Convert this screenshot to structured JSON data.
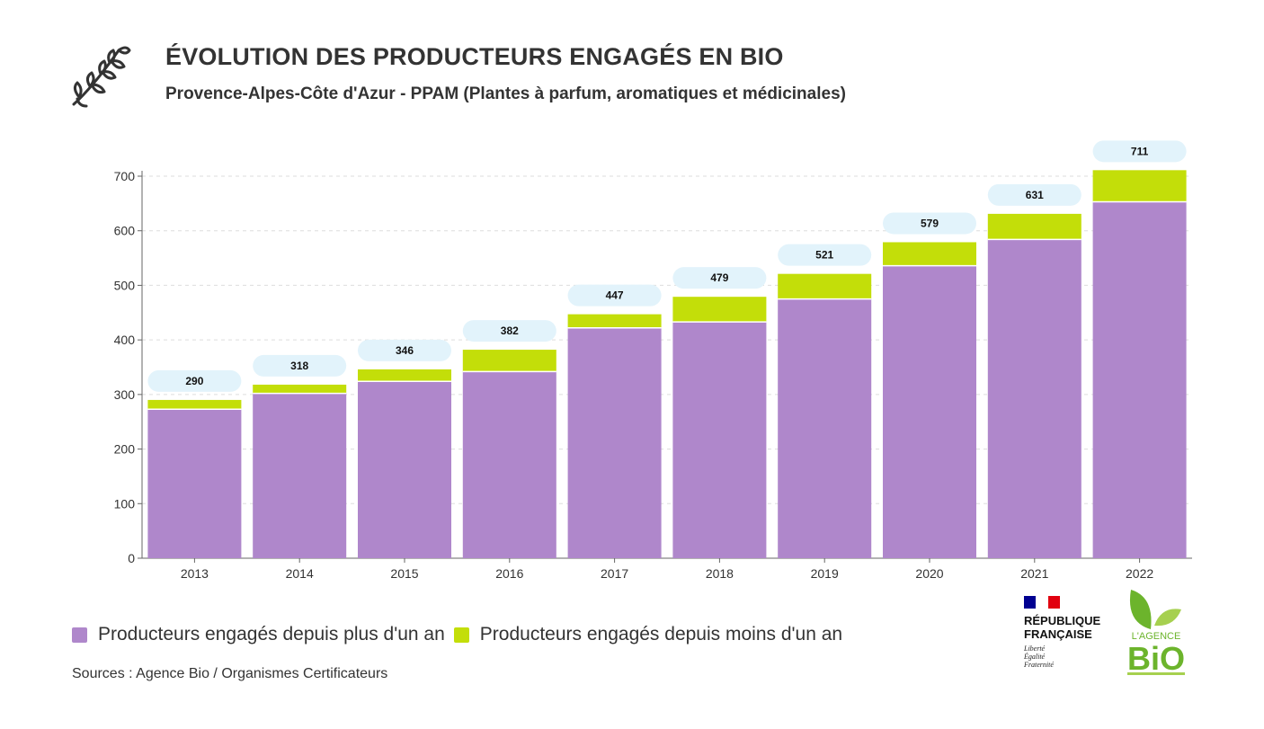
{
  "header": {
    "icon": "herb-sprig-icon",
    "title": "ÉVOLUTION DES PRODUCTEURS ENGAGÉS EN BIO",
    "subtitle": "Provence-Alpes-Côte d'Azur - PPAM (Plantes à parfum, aromatiques et médicinales)"
  },
  "colors": {
    "series_more": "#af87cb",
    "series_less": "#c3de09",
    "total_label_bg": "#e2f3fb",
    "axis": "#666666",
    "grid": "#dddddd",
    "text": "#333333"
  },
  "chart_data": {
    "type": "bar",
    "stacked": true,
    "categories": [
      "2013",
      "2014",
      "2015",
      "2016",
      "2017",
      "2018",
      "2019",
      "2020",
      "2021",
      "2022"
    ],
    "series": [
      {
        "name": "Producteurs engagés depuis plus d'un an",
        "values": [
          273,
          302,
          324,
          342,
          422,
          433,
          475,
          536,
          584,
          653
        ]
      },
      {
        "name": "Producteurs engagés depuis moins d'un an",
        "values": [
          17,
          16,
          22,
          40,
          25,
          46,
          46,
          43,
          47,
          58
        ]
      }
    ],
    "totals": [
      290,
      318,
      346,
      382,
      447,
      479,
      521,
      579,
      631,
      711
    ],
    "ylim": [
      0,
      700
    ],
    "yticks": [
      0,
      100,
      200,
      300,
      400,
      500,
      600,
      700
    ],
    "grid": true,
    "legend_position": "bottom-left"
  },
  "legend": [
    {
      "label": "Producteurs engagés depuis plus d'un an"
    },
    {
      "label": "Producteurs engagés depuis moins d'un an"
    }
  ],
  "source": "Sources : Agence Bio / Organismes Certificateurs",
  "logos": {
    "republique": {
      "name": "RÉPUBLIQUE\nFRANÇAISE",
      "motto": "Liberté\nÉgalité\nFraternité",
      "flag_colors": [
        "#000091",
        "#ffffff",
        "#e1000f"
      ]
    },
    "agence_bio": {
      "text_top": "L'AGENCE",
      "text_main": "BiO",
      "color": "#6cb42c",
      "color_light": "#a6d04f"
    }
  }
}
